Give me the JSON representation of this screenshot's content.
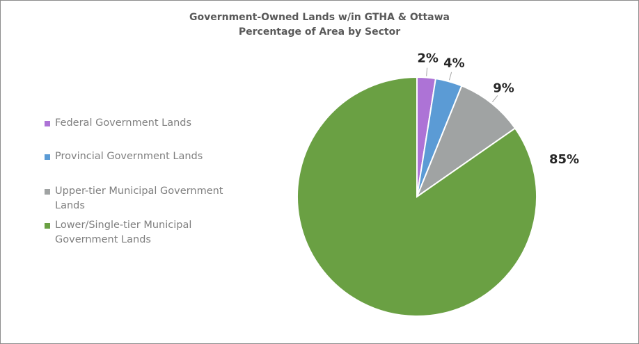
{
  "chart_data": {
    "type": "pie",
    "title": "Government-Owned Lands w/in GTHA & Ottawa",
    "subtitle": "Percentage of Area by Sector",
    "start": "top",
    "direction": "clockwise",
    "legend_position": "left",
    "slices": [
      {
        "name": "Federal Government Lands",
        "value": 2.5,
        "label": "2%",
        "color": "#ad73d6"
      },
      {
        "name": "Provincial Government Lands",
        "value": 3.6,
        "label": "4%",
        "color": "#5b9bd5"
      },
      {
        "name": "Upper-tier Municipal Government Lands",
        "value": 9.2,
        "label": "9%",
        "color": "#a0a3a3"
      },
      {
        "name": "Lower/Single-tier Municipal Government Lands",
        "value": 84.7,
        "label": "85%",
        "color": "#6aa043"
      }
    ]
  },
  "legend": [
    {
      "lines": [
        "Federal Government Lands"
      ]
    },
    {
      "lines": [
        "Provincial Government Lands"
      ]
    },
    {
      "lines": [
        "Upper-tier Municipal Government",
        "Lands"
      ]
    },
    {
      "lines": [
        "Lower/Single-tier Municipal",
        "Government Lands"
      ]
    }
  ]
}
